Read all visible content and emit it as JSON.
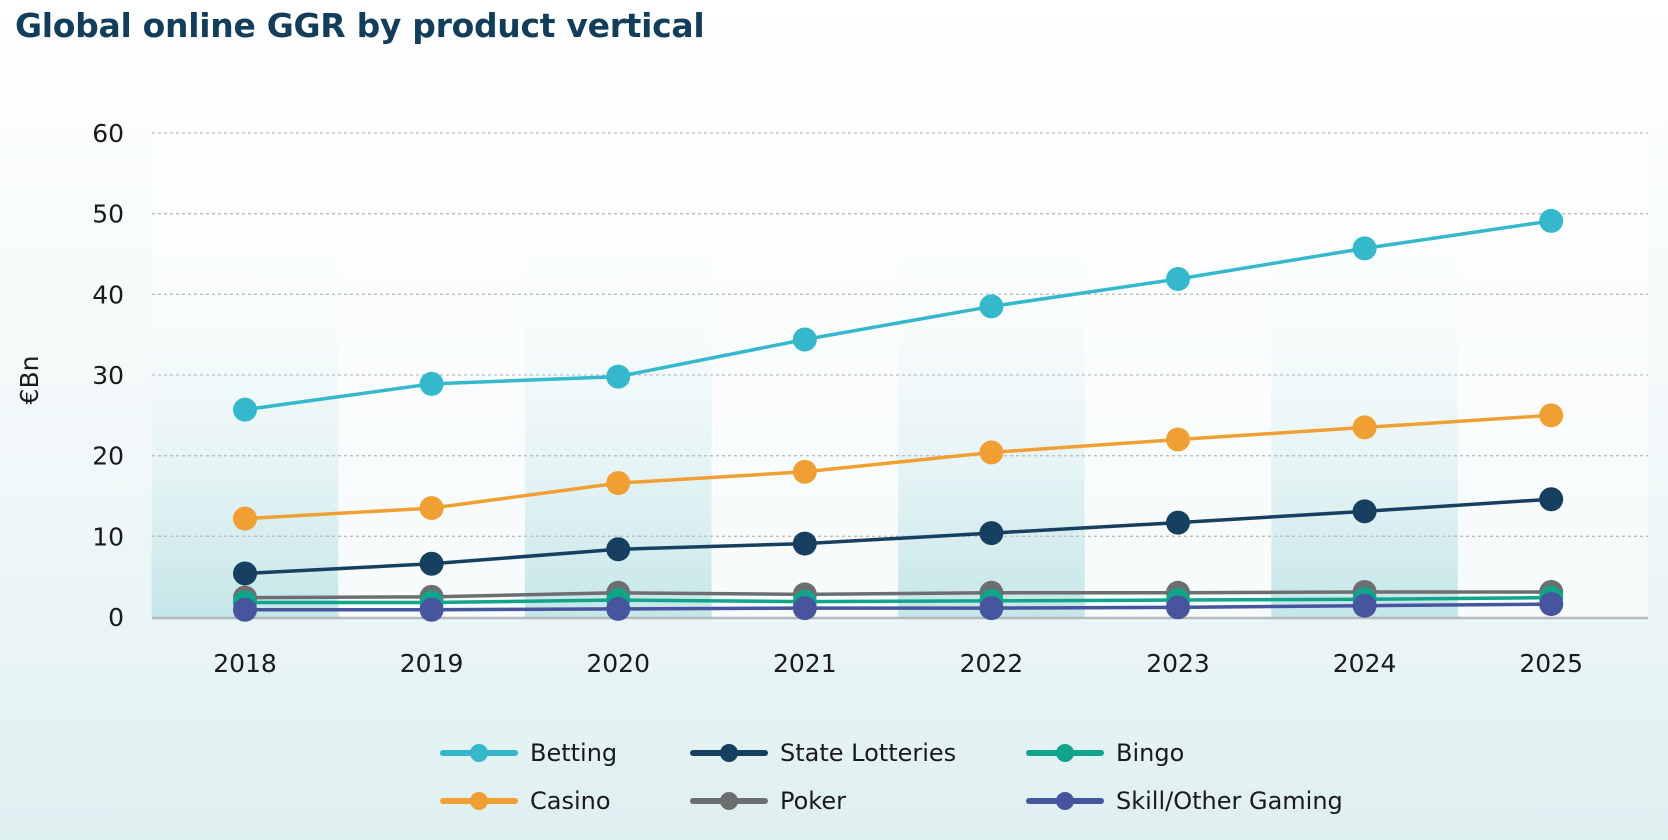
{
  "title": "Global online GGR by product vertical",
  "chart_data": {
    "type": "line",
    "title": "Global online GGR by product vertical",
    "xlabel": "",
    "ylabel": "€Bn",
    "ylim": [
      0,
      60
    ],
    "yticks": [
      "0",
      "10",
      "20",
      "30",
      "40",
      "50",
      "60"
    ],
    "grid": true,
    "legend_position": "bottom",
    "categories": [
      "2018",
      "2019",
      "2020",
      "2021",
      "2022",
      "2023",
      "2024",
      "2025"
    ],
    "series": [
      {
        "name": "Betting",
        "color": "#35b8cc",
        "values": [
          25.7,
          28.9,
          29.8,
          34.4,
          38.5,
          41.9,
          45.7,
          49.1
        ]
      },
      {
        "name": "Casino",
        "color": "#f0a033",
        "values": [
          12.2,
          13.5,
          16.6,
          18.0,
          20.4,
          22.0,
          23.5,
          25.0
        ]
      },
      {
        "name": "State Lotteries",
        "color": "#173f5f",
        "values": [
          5.4,
          6.6,
          8.4,
          9.1,
          10.4,
          11.7,
          13.1,
          14.6
        ]
      },
      {
        "name": "Poker",
        "color": "#6d6e70",
        "values": [
          2.4,
          2.5,
          3.0,
          2.8,
          3.0,
          3.0,
          3.1,
          3.1
        ]
      },
      {
        "name": "Bingo",
        "color": "#10a58a",
        "values": [
          1.8,
          1.8,
          2.1,
          1.9,
          2.0,
          2.1,
          2.2,
          2.4
        ]
      },
      {
        "name": "Skill/Other Gaming",
        "color": "#46559e",
        "values": [
          0.9,
          0.9,
          1.0,
          1.1,
          1.1,
          1.2,
          1.4,
          1.6
        ]
      }
    ]
  },
  "legend": [
    {
      "name": "Betting",
      "color": "#35b8cc"
    },
    {
      "name": "State Lotteries",
      "color": "#173f5f"
    },
    {
      "name": "Bingo",
      "color": "#10a58a"
    },
    {
      "name": "Casino",
      "color": "#f0a033"
    },
    {
      "name": "Poker",
      "color": "#6d6e70"
    },
    {
      "name": "Skill/Other Gaming",
      "color": "#46559e"
    }
  ]
}
